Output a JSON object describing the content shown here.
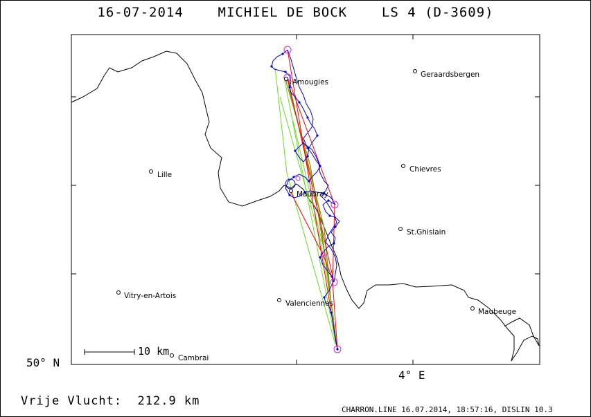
{
  "header": {
    "date": "16-07-2014",
    "pilot": "MICHIEL DE BOCK",
    "glider": "LS 4 (D-3609)"
  },
  "axes": {
    "lat_label": "50° N",
    "lon_label": "4° E"
  },
  "scale": {
    "label": "10 km"
  },
  "footer": {
    "distance": "Vrije Vlucht:  212.9 km",
    "software": "CHARRON.LINE 16.07.2014, 18:57:16, DISLIN 10.3"
  },
  "cities": [
    {
      "name": "Geraardsbergen"
    },
    {
      "name": "Amougies"
    },
    {
      "name": "Lille"
    },
    {
      "name": "Chievres"
    },
    {
      "name": "Maubray"
    },
    {
      "name": "St.Ghislain"
    },
    {
      "name": "Vitry-en-Artois"
    },
    {
      "name": "Valenciennes"
    },
    {
      "name": "Maubeuge"
    },
    {
      "name": "Cambrai"
    }
  ],
  "colors": {
    "track": "#0000cc",
    "task": "#ff0000",
    "optimized": "#66dd22",
    "olive": "#8a8a00",
    "turnpoint": "#dd22dd",
    "border": "#000000"
  }
}
